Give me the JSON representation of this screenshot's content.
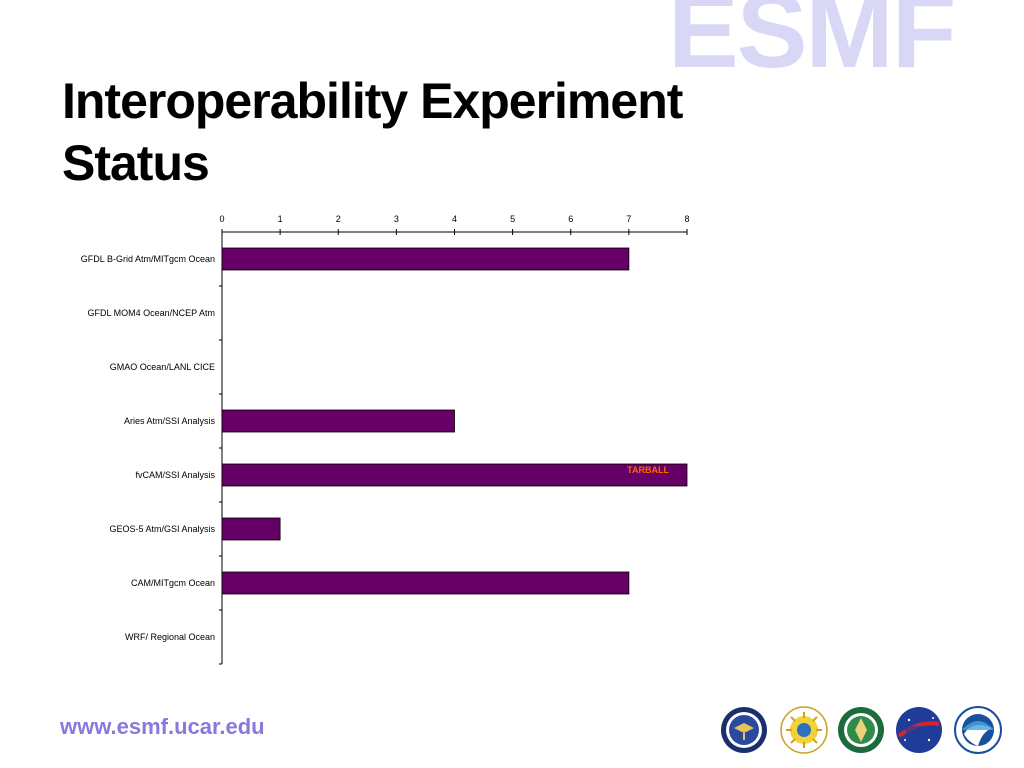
{
  "logo": {
    "text": "ESMF",
    "color": "#d8d8f6"
  },
  "slide": {
    "title_line1": "Interoperability Experiment",
    "title_line2": "Status",
    "url": "www.esmf.ucar.edu"
  },
  "seals": [
    "department-of-defense-seal",
    "nsf-seal",
    "department-of-energy-seal",
    "nasa-seal",
    "noaa-seal"
  ],
  "chart_data": {
    "type": "bar",
    "orientation": "horizontal",
    "categories": [
      "GFDL B-Grid Atm/MITgcm Ocean",
      "GFDL MOM4 Ocean/NCEP Atm",
      "GMAO Ocean/LANL CICE",
      "Aries Atm/SSI Analysis",
      "fvCAM/SSI Analysis",
      "GEOS-5 Atm/GSI Analysis",
      "CAM/MITgcm Ocean",
      "WRF/ Regional Ocean"
    ],
    "values": [
      7,
      0,
      0,
      4,
      8,
      1,
      7,
      0
    ],
    "xlim": [
      0,
      8
    ],
    "x_ticks": [
      "0",
      "1",
      "2",
      "3",
      "4",
      "5",
      "6",
      "7",
      "8"
    ],
    "x_axis_position": "top",
    "grid": false,
    "bar_color": "#660066",
    "annotations": [
      {
        "category": "fvCAM/SSI Analysis",
        "text": "TARBALL",
        "color": "#ff6600"
      }
    ]
  }
}
